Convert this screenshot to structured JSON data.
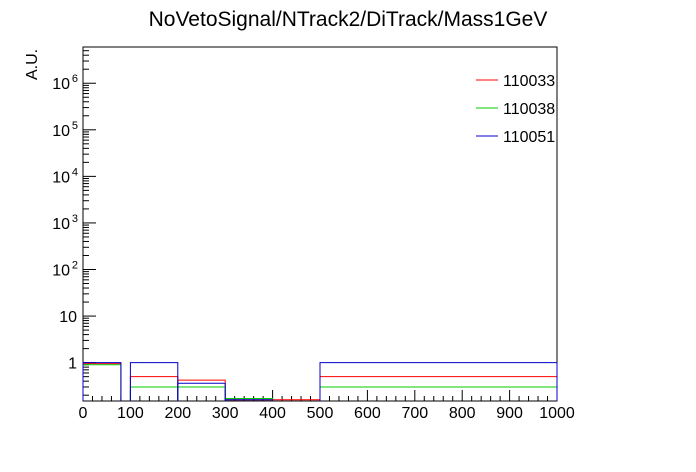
{
  "chart_data": {
    "type": "line",
    "title": "NoVetoSignal/NTrack2/DiTrack/Mass1GeV",
    "xlabel": "",
    "ylabel": "A.U.",
    "xlim": [
      0,
      1000
    ],
    "ylim": [
      0.15,
      6000000
    ],
    "log_y": true,
    "grid": false,
    "legend_position": "top-right",
    "x_ticks": [
      0,
      100,
      200,
      300,
      400,
      500,
      600,
      700,
      800,
      900,
      1000
    ],
    "x_tick_labels": [
      "0",
      "100",
      "200",
      "300",
      "400",
      "500",
      "600",
      "700",
      "800",
      "900",
      "1000"
    ],
    "y_ticks": [
      1,
      10,
      100,
      1000,
      10000,
      100000,
      1000000
    ],
    "y_tick_labels": [
      {
        "base": "1",
        "exp": ""
      },
      {
        "base": "10",
        "exp": ""
      },
      {
        "base": "10",
        "exp": "2"
      },
      {
        "base": "10",
        "exp": "3"
      },
      {
        "base": "10",
        "exp": "4"
      },
      {
        "base": "10",
        "exp": "5"
      },
      {
        "base": "10",
        "exp": "6"
      }
    ],
    "series": [
      {
        "name": "110033",
        "color": "#ff0000",
        "bins": [
          {
            "lo": 0,
            "hi": 80,
            "value": 0.95
          },
          {
            "lo": 100,
            "hi": 200,
            "value": 0.5
          },
          {
            "lo": 200,
            "hi": 300,
            "value": 0.42
          },
          {
            "lo": 300,
            "hi": 500,
            "value": 0.16
          },
          {
            "lo": 500,
            "hi": 1000,
            "value": 0.5
          }
        ]
      },
      {
        "name": "110038",
        "color": "#00cc00",
        "bins": [
          {
            "lo": 0,
            "hi": 80,
            "value": 0.9
          },
          {
            "lo": 100,
            "hi": 200,
            "value": 0.3
          },
          {
            "lo": 200,
            "hi": 300,
            "value": 0.3
          },
          {
            "lo": 300,
            "hi": 400,
            "value": 0.17
          },
          {
            "lo": 500,
            "hi": 1000,
            "value": 0.3
          }
        ]
      },
      {
        "name": "110051",
        "color": "#0000cc",
        "bins": [
          {
            "lo": 0,
            "hi": 80,
            "value": 1.0
          },
          {
            "lo": 100,
            "hi": 200,
            "value": 1.0
          },
          {
            "lo": 200,
            "hi": 300,
            "value": 0.36
          },
          {
            "lo": 300,
            "hi": 400,
            "value": 0.16
          },
          {
            "lo": 500,
            "hi": 1000,
            "value": 1.0
          }
        ]
      }
    ]
  }
}
